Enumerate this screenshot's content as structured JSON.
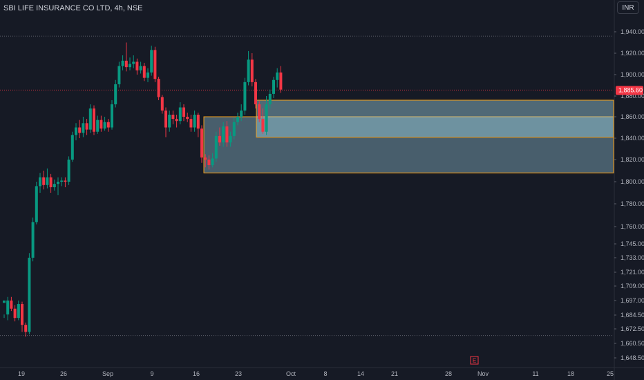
{
  "header": {
    "title": "SBI LIFE INSURANCE CO LTD, 4h, NSE",
    "currency": "INR"
  },
  "colors": {
    "background": "#161a25",
    "up": "#089981",
    "down": "#f23645",
    "zone_border": "#f7a21b",
    "zone_fill": "#a7e0f0"
  },
  "chart_data": {
    "type": "candlestick",
    "title": "SBI LIFE INSURANCE CO LTD, 4h, NSE",
    "y_axis": {
      "ticks": [
        "1,940.00",
        "1,920.00",
        "1,900.00",
        "1,880.00",
        "1,860.00",
        "1,840.00",
        "1,820.00",
        "1,800.00",
        "1,780.00",
        "1,760.00",
        "1,745.00",
        "1,733.00",
        "1,721.00",
        "1,709.00",
        "1,697.00",
        "1,684.50",
        "1,672.50",
        "1,660.50",
        "1,648.50"
      ]
    },
    "x_axis": {
      "ticks": [
        "19",
        "26",
        "Sep",
        "9",
        "16",
        "23",
        "Oct",
        "8",
        "14",
        "21",
        "28",
        "Nov",
        "11",
        "18",
        "25"
      ]
    },
    "last_price_label": "1,885.60",
    "last_price": 1885.6,
    "event_marker": "E",
    "dotted_levels": [
      1936,
      1667
    ],
    "zones": [
      {
        "name": "outer-zone",
        "x_start": 295,
        "x_end": 888,
        "top": 1860,
        "bottom": 1808
      },
      {
        "name": "inner-zone",
        "x_start": 371,
        "x_end": 888,
        "top": 1876,
        "bottom": 1841
      }
    ],
    "candles": [
      [
        1695,
        1697,
        1685,
        1682
      ],
      [
        1685,
        1697,
        1700,
        1680
      ],
      [
        1697,
        1690,
        1700,
        1688
      ],
      [
        1690,
        1682,
        1693,
        1679
      ],
      [
        1682,
        1694,
        1697,
        1680
      ],
      [
        1694,
        1676,
        1696,
        1670
      ],
      [
        1676,
        1670,
        1678,
        1666
      ],
      [
        1670,
        1733,
        1737,
        1668
      ],
      [
        1733,
        1764,
        1768,
        1730
      ],
      [
        1764,
        1796,
        1800,
        1762
      ],
      [
        1796,
        1804,
        1808,
        1790
      ],
      [
        1804,
        1797,
        1810,
        1793
      ],
      [
        1797,
        1804,
        1812,
        1794
      ],
      [
        1804,
        1795,
        1807,
        1790
      ],
      [
        1795,
        1798,
        1802,
        1792
      ],
      [
        1798,
        1800,
        1804,
        1788
      ],
      [
        1800,
        1801,
        1804,
        1796
      ],
      [
        1801,
        1800,
        1804,
        1795
      ],
      [
        1800,
        1820,
        1823,
        1797
      ],
      [
        1820,
        1843,
        1846,
        1818
      ],
      [
        1843,
        1850,
        1854,
        1838
      ],
      [
        1850,
        1845,
        1857,
        1840
      ],
      [
        1845,
        1854,
        1860,
        1841
      ],
      [
        1854,
        1848,
        1858,
        1843
      ],
      [
        1848,
        1868,
        1872,
        1845
      ],
      [
        1868,
        1846,
        1871,
        1843
      ],
      [
        1846,
        1857,
        1861,
        1844
      ],
      [
        1857,
        1849,
        1861,
        1846
      ],
      [
        1849,
        1855,
        1860,
        1847
      ],
      [
        1855,
        1850,
        1858,
        1846
      ],
      [
        1850,
        1872,
        1876,
        1848
      ],
      [
        1872,
        1891,
        1895,
        1869
      ],
      [
        1891,
        1908,
        1912,
        1888
      ],
      [
        1908,
        1913,
        1918,
        1904
      ],
      [
        1913,
        1907,
        1930,
        1903
      ],
      [
        1907,
        1910,
        1916,
        1904
      ],
      [
        1910,
        1912,
        1918,
        1906
      ],
      [
        1912,
        1904,
        1915,
        1900
      ],
      [
        1904,
        1908,
        1912,
        1901
      ],
      [
        1908,
        1897,
        1911,
        1894
      ],
      [
        1897,
        1902,
        1906,
        1893
      ],
      [
        1902,
        1923,
        1927,
        1899
      ],
      [
        1923,
        1896,
        1926,
        1893
      ],
      [
        1896,
        1879,
        1898,
        1876
      ],
      [
        1879,
        1866,
        1881,
        1863
      ],
      [
        1866,
        1850,
        1869,
        1841
      ],
      [
        1850,
        1862,
        1866,
        1846
      ],
      [
        1862,
        1858,
        1866,
        1853
      ],
      [
        1858,
        1856,
        1862,
        1850
      ],
      [
        1856,
        1869,
        1874,
        1853
      ],
      [
        1869,
        1860,
        1872,
        1856
      ],
      [
        1860,
        1858,
        1864,
        1855
      ],
      [
        1858,
        1850,
        1862,
        1846
      ],
      [
        1850,
        1862,
        1866,
        1846
      ],
      [
        1862,
        1849,
        1864,
        1841
      ],
      [
        1849,
        1822,
        1852,
        1817
      ],
      [
        1822,
        1820,
        1825,
        1813
      ],
      [
        1820,
        1815,
        1824,
        1811
      ],
      [
        1815,
        1821,
        1826,
        1813
      ],
      [
        1821,
        1842,
        1846,
        1818
      ],
      [
        1842,
        1836,
        1850,
        1833
      ],
      [
        1836,
        1851,
        1855,
        1832
      ],
      [
        1851,
        1836,
        1856,
        1832
      ],
      [
        1836,
        1842,
        1846,
        1832
      ],
      [
        1842,
        1855,
        1859,
        1839
      ],
      [
        1855,
        1860,
        1864,
        1852
      ],
      [
        1860,
        1866,
        1872,
        1856
      ],
      [
        1866,
        1893,
        1897,
        1862
      ],
      [
        1893,
        1914,
        1922,
        1890
      ],
      [
        1914,
        1893,
        1920,
        1889
      ],
      [
        1893,
        1872,
        1896,
        1868
      ],
      [
        1872,
        1858,
        1875,
        1855
      ],
      [
        1858,
        1846,
        1868,
        1844
      ],
      [
        1846,
        1872,
        1880,
        1843
      ],
      [
        1872,
        1882,
        1886,
        1868
      ],
      [
        1882,
        1895,
        1898,
        1878
      ],
      [
        1895,
        1902,
        1906,
        1888
      ],
      [
        1902,
        1886,
        1908,
        1883
      ]
    ]
  }
}
